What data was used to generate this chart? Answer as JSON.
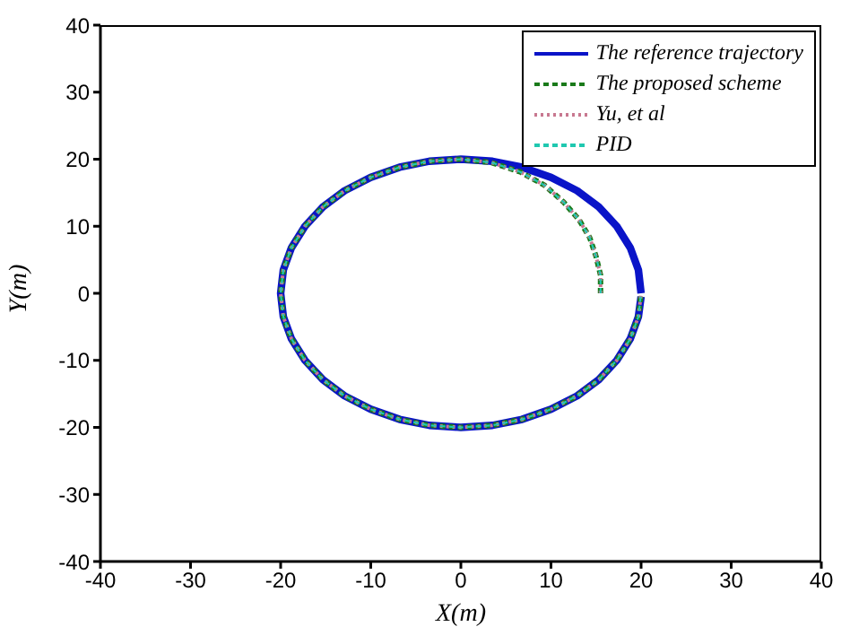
{
  "chart_data": {
    "type": "line",
    "xlabel": "X(m)",
    "ylabel": "Y(m)",
    "xlim": [
      -40,
      40
    ],
    "ylim": [
      -40,
      40
    ],
    "xticks": [
      -40,
      -30,
      -20,
      -10,
      0,
      10,
      20,
      30,
      40
    ],
    "yticks": [
      -40,
      -30,
      -20,
      -10,
      0,
      10,
      20,
      30,
      40
    ],
    "grid": false,
    "legend": "top right",
    "marker": "none",
    "series": [
      {
        "name": "The reference trajectory",
        "color": "#0a14c8",
        "line_style": "solid",
        "x": [
          20,
          19.7,
          18.8,
          17.3,
          15.3,
          12.9,
          10,
          6.8,
          3.5,
          0,
          -3.5,
          -6.8,
          -10,
          -12.9,
          -15.3,
          -17.3,
          -18.8,
          -19.7,
          -20,
          -19.7,
          -18.8,
          -17.3,
          -15.3,
          -12.9,
          -10,
          -6.8,
          -3.5,
          0,
          3.5,
          6.8,
          10,
          12.9,
          15.3,
          17.3,
          18.8,
          19.7,
          20
        ],
        "values": [
          0,
          3.5,
          6.8,
          10,
          12.9,
          15.3,
          17.3,
          18.8,
          19.7,
          20,
          19.7,
          18.8,
          17.3,
          15.3,
          12.9,
          10,
          6.8,
          3.5,
          0,
          -3.5,
          -6.8,
          -10,
          -12.9,
          -15.3,
          -17.3,
          -18.8,
          -19.7,
          -20,
          -19.7,
          -18.8,
          -17.3,
          -15.3,
          -12.9,
          -10,
          -6.8,
          -3.5,
          -0.5
        ]
      },
      {
        "name": "The proposed scheme",
        "color": "#1a7a1a",
        "line_style": "dashed",
        "x": [
          15.5,
          15.5,
          15,
          14.3,
          13.1,
          11.4,
          9.3,
          6.6,
          3.4,
          0,
          -3.5,
          -6.8,
          -10,
          -12.9,
          -15.3,
          -17.3,
          -18.8,
          -19.7,
          -20,
          -19.7,
          -18.8,
          -17.3,
          -15.3,
          -12.9,
          -10,
          -6.8,
          -3.5,
          0,
          3.5,
          6.8,
          10,
          12.9,
          15.3,
          17.3,
          18.8,
          19.7,
          20
        ],
        "values": [
          0,
          2.7,
          5.5,
          8.3,
          11,
          13.6,
          16.1,
          18.1,
          19.5,
          20,
          19.7,
          18.8,
          17.3,
          15.3,
          12.9,
          10,
          6.8,
          3.5,
          0,
          -3.5,
          -6.8,
          -10,
          -12.9,
          -15.3,
          -17.3,
          -18.8,
          -19.7,
          -20,
          -19.7,
          -18.8,
          -17.3,
          -15.3,
          -12.9,
          -10,
          -6.8,
          -3.5,
          0
        ]
      },
      {
        "name": "Yu, et al",
        "color": "#c87890",
        "line_style": "dotted",
        "x": [
          15.5,
          15.5,
          15,
          14.3,
          13.1,
          11.4,
          9.3,
          6.6,
          3.4,
          0,
          -3.5,
          -6.8,
          -10,
          -12.9,
          -15.3,
          -17.3,
          -18.8,
          -19.7,
          -20,
          -19.7,
          -18.8,
          -17.3,
          -15.3,
          -12.9,
          -10,
          -6.8,
          -3.5,
          0,
          3.5,
          6.8,
          10,
          12.9,
          15.3,
          17.3,
          18.8,
          19.7,
          20
        ],
        "values": [
          0,
          2.7,
          5.5,
          8.3,
          11,
          13.6,
          16.1,
          18.1,
          19.5,
          20,
          19.7,
          18.8,
          17.3,
          15.3,
          12.9,
          10,
          6.8,
          3.5,
          0,
          -3.5,
          -6.8,
          -10,
          -12.9,
          -15.3,
          -17.3,
          -18.8,
          -19.7,
          -20,
          -19.7,
          -18.8,
          -17.3,
          -15.3,
          -12.9,
          -10,
          -6.8,
          -3.5,
          0
        ]
      },
      {
        "name": "PID",
        "color": "#20c8b0",
        "line_style": "dashed",
        "x": [
          15.5,
          15.5,
          15,
          14.3,
          13.1,
          11.4,
          9.3,
          6.6,
          3.4,
          0,
          -3.5,
          -6.8,
          -10,
          -12.9,
          -15.3,
          -17.3,
          -18.8,
          -19.7,
          -20,
          -19.7,
          -18.8,
          -17.3,
          -15.3,
          -12.9,
          -10,
          -6.8,
          -3.5,
          0,
          3.5,
          6.8,
          10,
          12.9,
          15.3,
          17.3,
          18.8,
          19.7,
          20
        ],
        "values": [
          0,
          2.7,
          5.5,
          8.3,
          11,
          13.6,
          16.1,
          18.1,
          19.5,
          20,
          19.7,
          18.8,
          17.3,
          15.3,
          12.9,
          10,
          6.8,
          3.5,
          0,
          -3.5,
          -6.8,
          -10,
          -12.9,
          -15.3,
          -17.3,
          -18.8,
          -19.7,
          -20,
          -19.7,
          -18.8,
          -17.3,
          -15.3,
          -12.9,
          -10,
          -6.8,
          -3.5,
          0
        ]
      }
    ]
  }
}
